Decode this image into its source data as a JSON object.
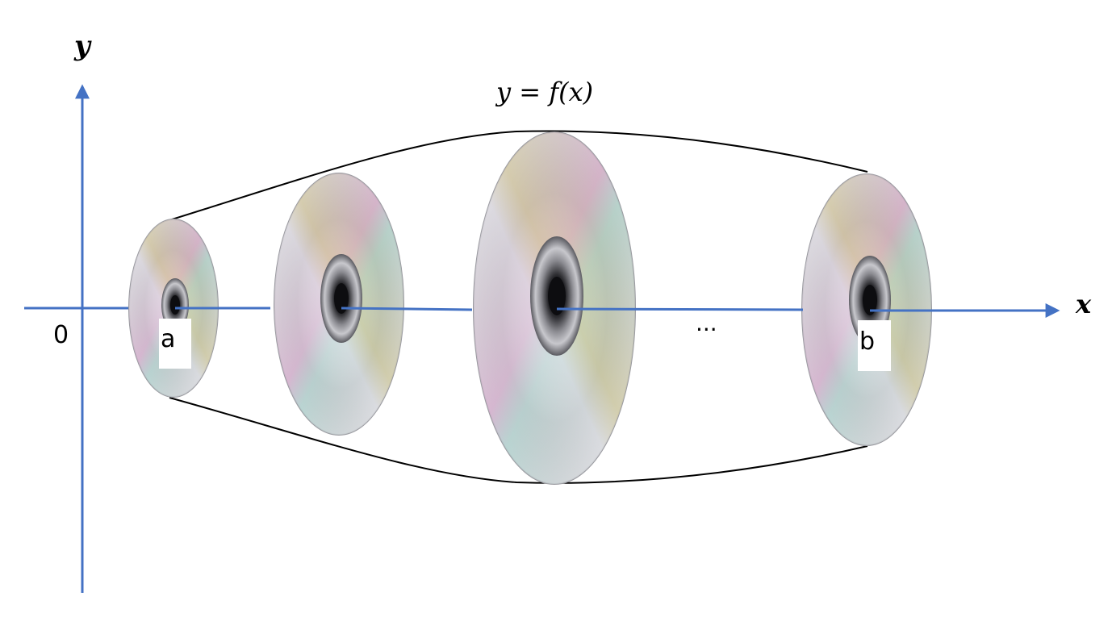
{
  "axes": {
    "y_label": "y",
    "x_label": "x",
    "origin_label": "0",
    "color": "#4472C4"
  },
  "curve": {
    "label": "y = f(x)"
  },
  "points": {
    "a_label": "a",
    "b_label": "b",
    "ellipsis": "..."
  },
  "discs": {
    "count": 4,
    "style": "compact-disc",
    "colors": {
      "base": "#8d8d92",
      "rim": "#d7d7dc",
      "hub": "#2a2a2e",
      "sheen_pink": "#e39bd1",
      "sheen_cyan": "#9fe3d7",
      "sheen_gold": "#e8dca0"
    }
  }
}
